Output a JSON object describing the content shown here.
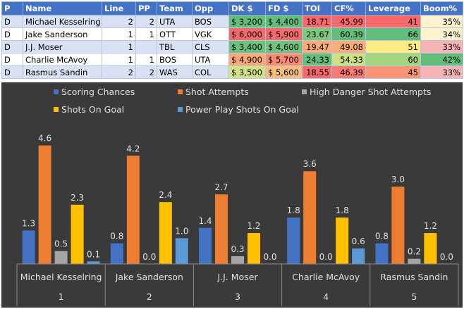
{
  "table": {
    "headers": [
      "P",
      "Name",
      "Line",
      "PP",
      "Team",
      "Opp",
      "DK $",
      "FD $",
      "TOI",
      "CF%",
      "Leverage",
      "Boom%"
    ],
    "rows": [
      {
        "p": "D",
        "name": "Michael Kesselring",
        "line": "2",
        "pp": "2",
        "team": "UTA",
        "opp": "BOS",
        "dk": "$ 3,200",
        "fd": "$ 4,400",
        "toi": "18.71",
        "cf": "45.99",
        "leverage": "41",
        "boom": "35%",
        "colors": {
          "dk": "#63be7b",
          "fd": "#63be7b",
          "toi": "#f8696b",
          "cf": "#f8696b",
          "leverage": "#f8696b",
          "boom": "#fff2cc"
        }
      },
      {
        "p": "D",
        "name": "Jake Sanderson",
        "line": "1",
        "pp": "1",
        "team": "OTT",
        "opp": "VGK",
        "dk": "$ 6,000",
        "fd": "$ 5,900",
        "toi": "23.67",
        "cf": "60.39",
        "leverage": "66",
        "boom": "34%",
        "colors": {
          "dk": "#f8696b",
          "fd": "#f8696b",
          "toi": "#7fc97c",
          "cf": "#63be7b",
          "leverage": "#63be7b",
          "boom": "#fff2cc"
        }
      },
      {
        "p": "D",
        "name": "J.J. Moser",
        "line": "1",
        "pp": "",
        "team": "TBL",
        "opp": "CLS",
        "dk": "$ 3,400",
        "fd": "$ 4,600",
        "toi": "19.47",
        "cf": "49.08",
        "leverage": "51",
        "boom": "33%",
        "colors": {
          "dk": "#6cc17c",
          "fd": "#70c27c",
          "toi": "#fbab77",
          "cf": "#fbad78",
          "leverage": "#ffeb84",
          "boom": "#f8b4b4"
        }
      },
      {
        "p": "D",
        "name": "Charlie McAvoy",
        "line": "1",
        "pp": "1",
        "team": "BOS",
        "opp": "UTA",
        "dk": "$ 4,900",
        "fd": "$ 5,700",
        "toi": "24.33",
        "cf": "54.33",
        "leverage": "60",
        "boom": "42%",
        "colors": {
          "dk": "#fbaa77",
          "fd": "#f98b73",
          "toi": "#63be7b",
          "cf": "#cce182",
          "leverage": "#a3d57f",
          "boom": "#63be7b"
        }
      },
      {
        "p": "D",
        "name": "Rasmus Sandin",
        "line": "2",
        "pp": "2",
        "team": "WAS",
        "opp": "COL",
        "dk": "$ 3,500",
        "fd": "$ 5,600",
        "toi": "18.55",
        "cf": "46.39",
        "leverage": "45",
        "boom": "33%",
        "colors": {
          "dk": "#d3e383",
          "fd": "#fcbf7b",
          "toi": "#f8696b",
          "cf": "#f97a70",
          "leverage": "#f99571",
          "boom": "#f8b4b4"
        }
      }
    ]
  },
  "chart_data": {
    "type": "bar",
    "categories": [
      "Michael Kesselring",
      "Jake Sanderson",
      "J.J. Moser",
      "Charlie McAvoy",
      "Rasmus Sandin"
    ],
    "category_index": [
      "1",
      "2",
      "3",
      "4",
      "5"
    ],
    "series": [
      {
        "name": "Scoring Chances",
        "color": "#4472c4",
        "values": [
          1.3,
          0.8,
          1.4,
          1.8,
          0.8
        ]
      },
      {
        "name": "Shot Attempts",
        "color": "#ed7d31",
        "values": [
          4.6,
          4.2,
          2.7,
          3.6,
          3.0
        ]
      },
      {
        "name": "High Danger Shot Attempts",
        "color": "#a5a5a5",
        "values": [
          0.5,
          0.0,
          0.3,
          0.0,
          0.2
        ]
      },
      {
        "name": "Shots On Goal",
        "color": "#ffc000",
        "values": [
          2.3,
          2.4,
          1.2,
          1.8,
          1.2
        ]
      },
      {
        "name": "Power Play Shots On Goal",
        "color": "#5b9bd5",
        "values": [
          0.1,
          1.0,
          0.0,
          0.6,
          0.0
        ]
      }
    ],
    "ylim": [
      0,
      5
    ],
    "legend": "top",
    "grid": false,
    "background": "#3a3a3a"
  }
}
